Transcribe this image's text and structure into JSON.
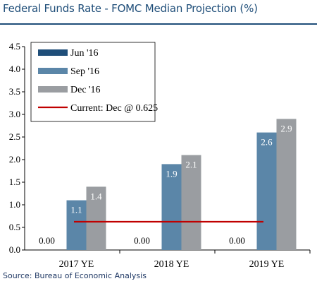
{
  "title": "Federal Funds Rate - FOMC Median Projection (%)",
  "source": "Source: Bureau of Economic Analysis",
  "colors": {
    "series": [
      "#1f4e79",
      "#5b86a8",
      "#9a9da1"
    ],
    "current_line": "#c00000",
    "title": "#1f4e79",
    "axis": "#000000"
  },
  "chart_data": {
    "type": "bar",
    "categories": [
      "2017 YE",
      "2018 YE",
      "2019 YE"
    ],
    "series": [
      {
        "name": "Jun '16",
        "values": [
          0,
          0,
          0
        ],
        "labels": [
          "0.00",
          "0.00",
          "0.00"
        ]
      },
      {
        "name": "Sep '16",
        "values": [
          1.1,
          1.9,
          2.6
        ],
        "labels": [
          "1.1",
          "1.9",
          "2.6"
        ]
      },
      {
        "name": "Dec '16",
        "values": [
          1.4,
          2.1,
          2.9
        ],
        "labels": [
          "1.4",
          "2.1",
          "2.9"
        ]
      }
    ],
    "reference_line": {
      "name": "Current: Dec @ 0.625",
      "value": 0.625
    },
    "ylim": [
      0,
      4.5
    ],
    "yticks": [
      "0.0",
      "0.5",
      "1.0",
      "1.5",
      "2.0",
      "2.5",
      "3.0",
      "3.5",
      "4.0",
      "4.5"
    ],
    "legend_position": "top-left",
    "grid": false
  }
}
